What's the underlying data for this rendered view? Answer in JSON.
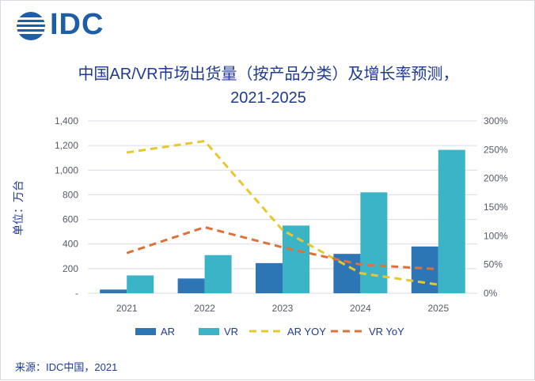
{
  "logo": {
    "text": "IDC",
    "icon": "idc-globe-icon"
  },
  "source": "来源：IDC中国，2021",
  "colors": {
    "ar": "#2e75b6",
    "vr": "#3cb4c8",
    "ar_yoy": "#e6c82e",
    "vr_yoy": "#e0703a",
    "grid": "#d9dce3",
    "text": "#1f3a93"
  },
  "chart_data": {
    "type": "bar",
    "title": "中国AR/VR市场出货量（按产品分类）及增长率预测，",
    "subtitle": "2021-2025",
    "ylabel": "单位：万台",
    "categories": [
      "2021",
      "2022",
      "2023",
      "2024",
      "2025"
    ],
    "series": [
      {
        "name": "AR",
        "type": "bar",
        "axis": "left",
        "values": [
          30,
          120,
          245,
          320,
          380
        ]
      },
      {
        "name": "VR",
        "type": "bar",
        "axis": "left",
        "values": [
          145,
          310,
          550,
          820,
          1165
        ]
      },
      {
        "name": "AR YOY",
        "type": "line",
        "dash": true,
        "axis": "right",
        "values": [
          2.45,
          2.65,
          1.1,
          0.35,
          0.15
        ]
      },
      {
        "name": "VR YoY",
        "type": "line",
        "dash": true,
        "axis": "right",
        "values": [
          0.7,
          1.15,
          0.8,
          0.5,
          0.42
        ]
      }
    ],
    "ylim": [
      0,
      1400
    ],
    "y_ticks": [
      "-",
      "200",
      "400",
      "600",
      "800",
      "1,000",
      "1,200",
      "1,400"
    ],
    "y2lim": [
      0,
      3
    ],
    "y2_ticks": [
      "0%",
      "50%",
      "100%",
      "150%",
      "200%",
      "250%",
      "300%"
    ],
    "grid": true,
    "legend": "bottom"
  }
}
